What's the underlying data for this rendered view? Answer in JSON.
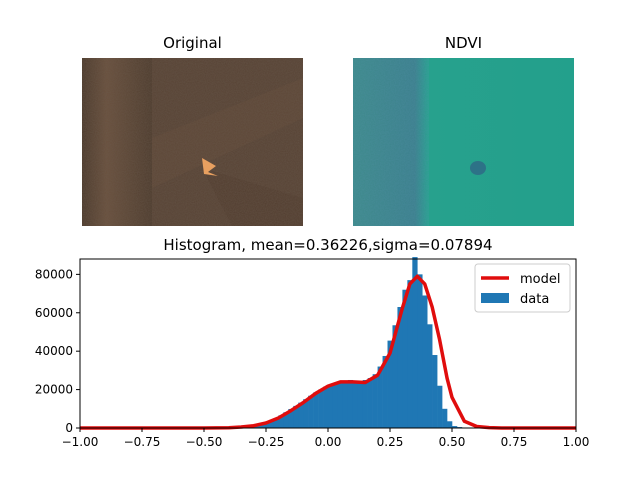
{
  "colors": {
    "data": "#1f77b4",
    "model": "#e00d0d",
    "soil_dark": "#3b2d22",
    "soil_light": "#6b5443",
    "ndvi_left": "#3f8a8a",
    "ndvi_right": "#24a08e"
  },
  "panels": {
    "original_title": "Original",
    "ndvi_title": "NDVI"
  },
  "chart_data": {
    "type": "bar",
    "title": "Histogram, mean=0.36226,sigma=0.07894",
    "xlabel": "",
    "ylabel": "",
    "xlim": [
      -1.0,
      1.0
    ],
    "ylim": [
      0,
      88000
    ],
    "x_ticks": [
      "−1.00",
      "−0.75",
      "−0.50",
      "−0.25",
      "0.00",
      "0.25",
      "0.50",
      "0.75",
      "1.00"
    ],
    "y_ticks": [
      "0",
      "20000",
      "40000",
      "60000",
      "80000"
    ],
    "legend": {
      "placement": "top-right",
      "entries": [
        "model",
        "data"
      ]
    },
    "grid": false,
    "bins": {
      "centers": [
        -0.39,
        -0.37,
        -0.35,
        -0.33,
        -0.31,
        -0.29,
        -0.27,
        -0.25,
        -0.23,
        -0.21,
        -0.19,
        -0.17,
        -0.15,
        -0.13,
        -0.11,
        -0.09,
        -0.07,
        -0.05,
        -0.03,
        -0.01,
        0.01,
        0.03,
        0.05,
        0.07,
        0.09,
        0.11,
        0.13,
        0.15,
        0.17,
        0.19,
        0.21,
        0.23,
        0.25,
        0.27,
        0.29,
        0.31,
        0.33,
        0.35,
        0.37,
        0.39,
        0.41,
        0.43,
        0.45,
        0.47,
        0.49,
        0.51,
        0.53,
        0.55,
        0.57,
        0.59,
        0.61,
        0.63,
        0.65,
        0.67
      ],
      "counts": [
        0,
        200,
        300,
        500,
        800,
        1200,
        1800,
        2700,
        3800,
        5000,
        6600,
        8200,
        9900,
        11500,
        13200,
        15000,
        16800,
        18500,
        20000,
        21500,
        22500,
        23500,
        24000,
        24500,
        25000,
        24500,
        24200,
        25000,
        26000,
        28000,
        32000,
        37500,
        45500,
        53500,
        63000,
        72000,
        77000,
        89000,
        80000,
        69000,
        54000,
        38000,
        22000,
        10000,
        3500,
        1000,
        500,
        200,
        100,
        50,
        0,
        0,
        0,
        0
      ]
    },
    "series": [
      {
        "name": "model",
        "x": [
          -1.0,
          -0.5,
          -0.4,
          -0.35,
          -0.3,
          -0.25,
          -0.2,
          -0.15,
          -0.1,
          -0.05,
          0.0,
          0.05,
          0.1,
          0.15,
          0.2,
          0.25,
          0.3,
          0.33,
          0.36,
          0.39,
          0.42,
          0.45,
          0.48,
          0.5,
          0.55,
          0.6,
          0.65,
          0.7,
          1.0
        ],
        "y": [
          0,
          0,
          150,
          500,
          1200,
          2600,
          5200,
          9000,
          13200,
          18000,
          21800,
          24000,
          24000,
          23700,
          27500,
          39000,
          62500,
          75000,
          79000,
          75000,
          63000,
          46000,
          26000,
          16000,
          3500,
          800,
          200,
          0,
          0
        ]
      }
    ]
  }
}
